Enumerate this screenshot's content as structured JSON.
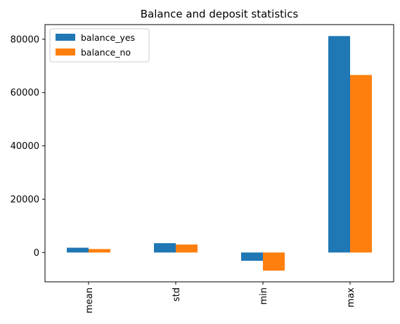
{
  "chart_data": {
    "type": "bar",
    "title": "Balance and deposit statistics",
    "xlabel": "",
    "ylabel": "",
    "categories": [
      "mean",
      "std",
      "min",
      "max"
    ],
    "series": [
      {
        "name": "balance_yes",
        "color": "#1f77b4",
        "values": [
          1800,
          3500,
          -3100,
          81200
        ]
      },
      {
        "name": "balance_no",
        "color": "#ff7f0e",
        "values": [
          1300,
          3000,
          -6800,
          66600
        ]
      }
    ],
    "ylim": [
      -11000,
      85500
    ],
    "yticks": [
      0,
      20000,
      40000,
      60000,
      80000
    ],
    "ytick_labels": [
      "0",
      "20000",
      "40000",
      "60000",
      "80000"
    ],
    "grid": false,
    "legend_position": "top-left"
  }
}
